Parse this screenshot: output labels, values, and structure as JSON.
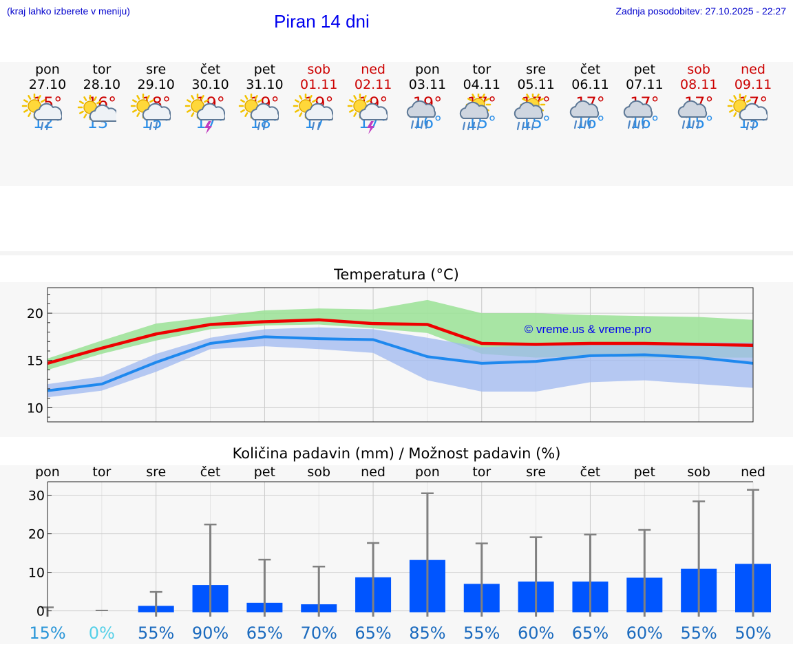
{
  "header": {
    "hint": "(kraj lahko izberete v meniju)",
    "title": "Piran 14 dni",
    "updated": "Zadnja posodobitev: 27.10.2025 - 22:27"
  },
  "days": [
    {
      "name": "pon",
      "date": "27.10",
      "weekend": false,
      "icon": "sun-cloud-rain-icon",
      "tmax": "15°",
      "tmin": "12°"
    },
    {
      "name": "tor",
      "date": "28.10",
      "weekend": false,
      "icon": "sun-cloud-icon",
      "tmax": "16°",
      "tmin": "13°"
    },
    {
      "name": "sre",
      "date": "29.10",
      "weekend": false,
      "icon": "sun-cloud-rain-icon",
      "tmax": "18°",
      "tmin": "15°"
    },
    {
      "name": "čet",
      "date": "30.10",
      "weekend": false,
      "icon": "sun-cloud-thunder-icon",
      "tmax": "19°",
      "tmin": "17°"
    },
    {
      "name": "pet",
      "date": "31.10",
      "weekend": false,
      "icon": "sun-cloud-rain-icon",
      "tmax": "19°",
      "tmin": "18°"
    },
    {
      "name": "sob",
      "date": "01.11",
      "weekend": true,
      "icon": "sun-cloud-rain-icon",
      "tmax": "19°",
      "tmin": "17°"
    },
    {
      "name": "ned",
      "date": "02.11",
      "weekend": true,
      "icon": "sun-cloud-thunder-icon",
      "tmax": "19°",
      "tmin": "17°"
    },
    {
      "name": "pon",
      "date": "03.11",
      "weekend": false,
      "icon": "cloud-heavy-rain-icon",
      "tmax": "19°",
      "tmin": "16°"
    },
    {
      "name": "tor",
      "date": "04.11",
      "weekend": false,
      "icon": "sun-cloud-heavy-rain-icon",
      "tmax": "17°",
      "tmin": "15°"
    },
    {
      "name": "sre",
      "date": "05.11",
      "weekend": false,
      "icon": "sun-cloud-heavy-rain-icon",
      "tmax": "17°",
      "tmin": "15°"
    },
    {
      "name": "čet",
      "date": "06.11",
      "weekend": false,
      "icon": "cloud-heavy-rain-icon",
      "tmax": "17°",
      "tmin": "16°"
    },
    {
      "name": "pet",
      "date": "07.11",
      "weekend": false,
      "icon": "cloud-heavy-rain-icon",
      "tmax": "17°",
      "tmin": "16°"
    },
    {
      "name": "sob",
      "date": "08.11",
      "weekend": true,
      "icon": "cloud-heavy-rain-icon",
      "tmax": "17°",
      "tmin": "15°"
    },
    {
      "name": "ned",
      "date": "09.11",
      "weekend": true,
      "icon": "sun-cloud-rain-icon",
      "tmax": "17°",
      "tmin": "15°"
    }
  ],
  "colors": {
    "max_line": "#ee0000",
    "min_line": "#1e88ee",
    "max_band": "#9ee29a",
    "min_band": "#9fb8f0",
    "overlap_band": "#7cc8a0",
    "bar": "#0055ff",
    "whisker": "#808080",
    "watermark": "#0000ee"
  },
  "chart_data": [
    {
      "type": "line",
      "title": "Temperatura (°C)",
      "watermark": "© vreme.us & vreme.pro",
      "x": [
        0,
        1,
        2,
        3,
        4,
        5,
        6,
        7,
        8,
        9,
        10,
        11,
        12,
        13
      ],
      "ylim": [
        8.5,
        22.7
      ],
      "yticks": [
        10,
        15,
        20
      ],
      "grid": true,
      "series": [
        {
          "name": "max",
          "values": [
            14.7,
            16.3,
            17.8,
            18.8,
            19.1,
            19.3,
            18.9,
            18.8,
            16.8,
            16.7,
            16.8,
            16.8,
            16.7,
            16.6
          ],
          "band_low": [
            14.0,
            15.7,
            17.1,
            18.3,
            18.7,
            18.8,
            18.4,
            17.9,
            15.7,
            15.3,
            15.4,
            15.3,
            15.3,
            15.3
          ],
          "band_high": [
            15.2,
            17.1,
            18.9,
            19.6,
            20.3,
            20.5,
            20.4,
            21.4,
            20.0,
            20.0,
            19.8,
            19.7,
            19.6,
            19.3
          ]
        },
        {
          "name": "min",
          "values": [
            11.8,
            12.5,
            14.8,
            16.8,
            17.5,
            17.3,
            17.2,
            15.4,
            14.7,
            14.9,
            15.5,
            15.6,
            15.3,
            14.7
          ],
          "band_low": [
            11.1,
            11.8,
            13.8,
            16.2,
            16.5,
            16.2,
            15.8,
            12.9,
            11.7,
            11.7,
            12.7,
            12.9,
            12.5,
            12.1
          ],
          "band_high": [
            12.5,
            13.3,
            15.7,
            17.4,
            18.3,
            18.5,
            18.3,
            17.4,
            16.4,
            16.6,
            16.8,
            16.9,
            16.9,
            16.9
          ]
        }
      ]
    },
    {
      "type": "bar",
      "title": "Količina padavin (mm) / Možnost padavin (%)",
      "categories": [
        "pon",
        "tor",
        "sre",
        "čet",
        "pet",
        "sob",
        "ned",
        "pon",
        "tor",
        "sre",
        "čet",
        "pet",
        "sob",
        "ned"
      ],
      "values": [
        0,
        0,
        1.3,
        6.7,
        2.1,
        1.7,
        8.7,
        13.2,
        7.0,
        7.6,
        7.6,
        8.6,
        10.9,
        12.2
      ],
      "error_high": [
        0.9,
        0.1,
        4.9,
        22.4,
        13.3,
        11.5,
        17.6,
        30.5,
        17.5,
        19.1,
        19.8,
        21.0,
        28.4,
        31.4
      ],
      "chance": [
        "15%",
        "0%",
        "55%",
        "90%",
        "65%",
        "70%",
        "65%",
        "85%",
        "55%",
        "60%",
        "65%",
        "60%",
        "55%",
        "50%"
      ],
      "chance_colors": [
        "#2a96d8",
        "#55d0e8",
        "#1a6abe",
        "#1a6abe",
        "#1a6abe",
        "#1a6abe",
        "#1a6abe",
        "#1a6abe",
        "#1a6abe",
        "#1a6abe",
        "#1a6abe",
        "#1a6abe",
        "#1a6abe",
        "#1a6abe"
      ],
      "ylim": [
        -1.5,
        33.5
      ],
      "yticks": [
        0,
        10,
        20,
        30
      ],
      "grid": true
    }
  ]
}
